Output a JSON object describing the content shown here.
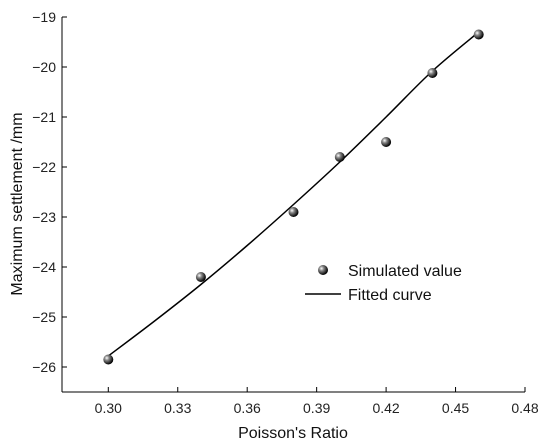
{
  "chart_data": {
    "type": "scatter",
    "xlabel": "Poisson's Ratio",
    "ylabel": "Maximum settlement /mm",
    "xlim": [
      0.28,
      0.48
    ],
    "ylim": [
      -26.5,
      -19
    ],
    "x_ticks": [
      0.3,
      0.33,
      0.36,
      0.39,
      0.42,
      0.45,
      0.48
    ],
    "x_tick_labels": [
      "0.30",
      "0.33",
      "0.36",
      "0.39",
      "0.42",
      "0.45",
      "0.48"
    ],
    "y_ticks": [
      -19,
      -20,
      -21,
      -22,
      -23,
      -24,
      -25,
      -26
    ],
    "y_tick_labels": [
      "−19",
      "−20",
      "−21",
      "−22",
      "−23",
      "−24",
      "−25",
      "−26"
    ],
    "legend_position": "center-right",
    "grid": false,
    "series": [
      {
        "name": "Simulated value",
        "kind": "scatter",
        "x": [
          0.3,
          0.34,
          0.38,
          0.4,
          0.42,
          0.44,
          0.46
        ],
        "y": [
          -25.85,
          -24.2,
          -22.9,
          -21.8,
          -21.5,
          -20.12,
          -19.35
        ]
      },
      {
        "name": "Fitted curve",
        "kind": "line",
        "x": [
          0.3,
          0.32,
          0.34,
          0.36,
          0.38,
          0.4,
          0.42,
          0.44,
          0.46
        ],
        "y": [
          -25.78,
          -25.08,
          -24.35,
          -23.57,
          -22.75,
          -21.9,
          -21.0,
          -20.08,
          -19.3
        ]
      }
    ]
  }
}
